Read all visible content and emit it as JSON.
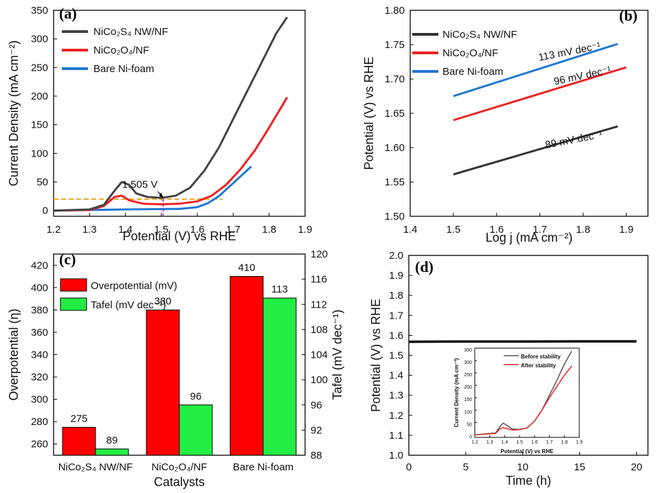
{
  "chart_data": [
    {
      "type": "line",
      "panel": "(a)",
      "xlabel": "Potential (V) vs RHE",
      "ylabel": "Current Density (mA cm⁻²)",
      "xlim": [
        1.2,
        1.9
      ],
      "ylim": [
        -10,
        350
      ],
      "xticks": [
        "1.2",
        "1.3",
        "1.4",
        "1.5",
        "1.6",
        "1.7",
        "1.8",
        "1.9"
      ],
      "yticks": [
        "0",
        "50",
        "100",
        "150",
        "200",
        "250",
        "300",
        "350"
      ],
      "legend_position": "top-left",
      "annotation": "1.505 V",
      "reference_lines": [
        {
          "kind": "horizontal",
          "y": 20,
          "x_range": [
            1.2,
            1.67
          ],
          "color": "#f5a623",
          "style": "dashed"
        },
        {
          "kind": "vertical",
          "x": 1.505,
          "y_range": [
            -10,
            22
          ],
          "color": "#cc33cc",
          "style": "dashed"
        }
      ],
      "series": [
        {
          "name": "NiCo₂S₄ NW/NF",
          "color": "#444444",
          "x": [
            1.2,
            1.3,
            1.34,
            1.37,
            1.39,
            1.41,
            1.43,
            1.46,
            1.5,
            1.54,
            1.58,
            1.62,
            1.66,
            1.7,
            1.74,
            1.78,
            1.82,
            1.85
          ],
          "y": [
            0,
            2,
            10,
            35,
            50,
            45,
            30,
            24,
            22,
            26,
            40,
            70,
            110,
            160,
            210,
            260,
            310,
            338
          ]
        },
        {
          "name": "NiCo₂O₄/NF",
          "color": "#ee2222",
          "x": [
            1.2,
            1.3,
            1.34,
            1.37,
            1.39,
            1.41,
            1.45,
            1.5,
            1.55,
            1.6,
            1.64,
            1.68,
            1.72,
            1.76,
            1.8,
            1.85
          ],
          "y": [
            0,
            1,
            8,
            24,
            26,
            18,
            12,
            11,
            12,
            16,
            26,
            45,
            72,
            105,
            145,
            198
          ]
        },
        {
          "name": "Bare Ni-foam",
          "color": "#1f77d4",
          "x": [
            1.2,
            1.4,
            1.55,
            1.6,
            1.63,
            1.66,
            1.7,
            1.75
          ],
          "y": [
            0,
            2,
            3,
            6,
            13,
            25,
            48,
            77
          ]
        }
      ]
    },
    {
      "type": "line",
      "panel": "(b)",
      "xlabel": "Log j (mA cm⁻²)",
      "ylabel": "Potential (V) vs RHE",
      "xlim": [
        1.4,
        1.95
      ],
      "ylim": [
        1.5,
        1.8
      ],
      "xticks": [
        "1.4",
        "1.5",
        "1.6",
        "1.7",
        "1.8",
        "1.9"
      ],
      "yticks": [
        "1.50",
        "1.55",
        "1.60",
        "1.65",
        "1.70",
        "1.75",
        "1.80"
      ],
      "legend_position": "top-left",
      "series": [
        {
          "name": "NiCo₂S₄ NW/NF",
          "color": "#333333",
          "x": [
            1.5,
            1.88
          ],
          "y": [
            1.561,
            1.631
          ],
          "label": "89 mV dec⁻¹"
        },
        {
          "name": "NiCo₂O₄/NF",
          "color": "#ee2222",
          "x": [
            1.5,
            1.9
          ],
          "y": [
            1.64,
            1.717
          ],
          "label": "96 mV dec⁻¹"
        },
        {
          "name": "Bare Ni-foam",
          "color": "#1f77d4",
          "x": [
            1.5,
            1.88
          ],
          "y": [
            1.675,
            1.751
          ],
          "label": "113 mV dec⁻¹"
        }
      ]
    },
    {
      "type": "bar",
      "panel": "(c)",
      "categories": [
        "NiCo₂S₄ NW/NF",
        "NiCo₂O₄/NF",
        "Bare Ni-foam"
      ],
      "xlabel": "Catalysts",
      "ylabel": "Overpotential (η)",
      "y2label": "Tafel (mV dec⁻¹)",
      "ylim": [
        250,
        430
      ],
      "y2lim": [
        88,
        120
      ],
      "yticks": [
        "260",
        "280",
        "300",
        "320",
        "340",
        "360",
        "380",
        "400",
        "420"
      ],
      "y2ticks": [
        "88",
        "92",
        "96",
        "100",
        "104",
        "108",
        "112",
        "116",
        "120"
      ],
      "legend_position": "top-left",
      "series": [
        {
          "name": "Overpotential (mV)",
          "color": "#ff0000",
          "axis": "left",
          "values": [
            275,
            380,
            410
          ]
        },
        {
          "name": "Tafel (mV dec⁻¹)",
          "color": "#22ee44",
          "axis": "right",
          "values": [
            89,
            96,
            113
          ]
        }
      ]
    },
    {
      "type": "line",
      "panel": "(d)",
      "xlabel": "Time (h)",
      "ylabel": "Potential (V) vs RHE",
      "xlim": [
        0,
        21
      ],
      "ylim": [
        1.0,
        2.0
      ],
      "xticks": [
        "0",
        "5",
        "10",
        "15",
        "20"
      ],
      "yticks": [
        "1.0",
        "1.1",
        "1.2",
        "1.3",
        "1.4",
        "1.5",
        "1.6",
        "1.7",
        "1.8",
        "1.9",
        "2.0"
      ],
      "series": [
        {
          "color": "#000000",
          "x": [
            0,
            5,
            10,
            15,
            20
          ],
          "y": [
            1.568,
            1.569,
            1.569,
            1.57,
            1.57
          ]
        }
      ],
      "inset": {
        "type": "line",
        "xlabel": "Potential (V) vs RHE",
        "ylabel": "Current Density (mA cm⁻²)",
        "xlim": [
          1.2,
          1.9
        ],
        "ylim": [
          -10,
          350
        ],
        "xticks": [
          "1.2",
          "1.3",
          "1.4",
          "1.5",
          "1.6",
          "1.7",
          "1.8",
          "1.9"
        ],
        "yticks": [
          "0",
          "50",
          "100",
          "150",
          "200",
          "250",
          "300",
          "350"
        ],
        "legend_position": "top-right",
        "series": [
          {
            "name": "Before stability",
            "color": "#555555",
            "x": [
              1.2,
              1.34,
              1.37,
              1.39,
              1.41,
              1.45,
              1.5,
              1.55,
              1.6,
              1.65,
              1.7,
              1.75,
              1.8,
              1.85
            ],
            "y": [
              0,
              8,
              35,
              48,
              40,
              24,
              22,
              28,
              55,
              100,
              160,
              220,
              285,
              338
            ]
          },
          {
            "name": "After stability",
            "color": "#ee2222",
            "x": [
              1.2,
              1.34,
              1.37,
              1.39,
              1.41,
              1.45,
              1.5,
              1.55,
              1.6,
              1.65,
              1.7,
              1.75,
              1.8,
              1.85
            ],
            "y": [
              0,
              6,
              25,
              30,
              26,
              20,
              21,
              28,
              55,
              100,
              150,
              195,
              240,
              278
            ]
          }
        ]
      }
    }
  ]
}
